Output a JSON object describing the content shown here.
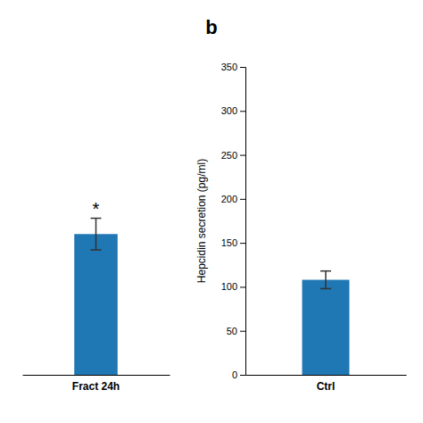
{
  "chart_data": [
    {
      "type": "bar",
      "categories": [
        "Fract 24h"
      ],
      "values": [
        160
      ],
      "errors": [
        18
      ],
      "annotation": "*",
      "ylim": [
        0,
        350
      ],
      "tick_labels": "x"
    },
    {
      "type": "bar",
      "title": "b",
      "ylabel": "Hepcidin secretion (pg/ml)",
      "categories": [
        "Ctrl"
      ],
      "values": [
        108
      ],
      "errors": [
        10
      ],
      "ylim": [
        0,
        350
      ],
      "yticks": [
        0,
        50,
        100,
        150,
        200,
        250,
        300,
        350
      ]
    }
  ]
}
